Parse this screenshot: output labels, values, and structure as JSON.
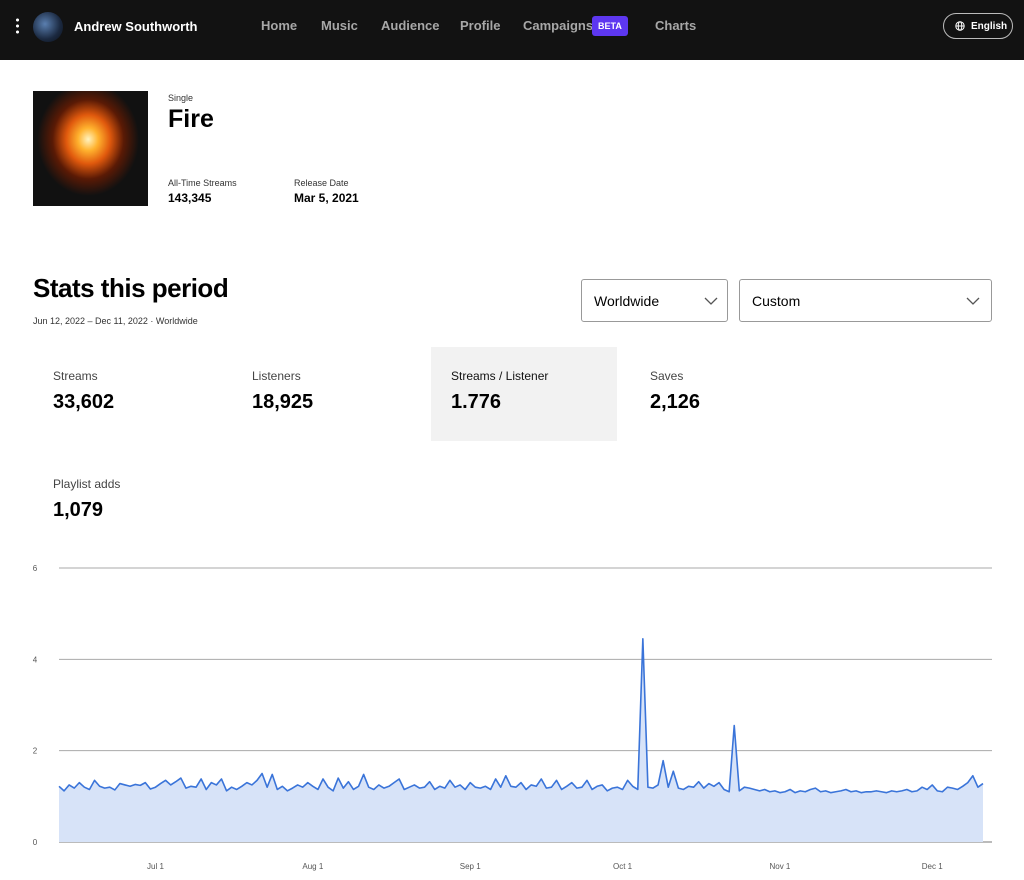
{
  "header": {
    "artist": "Andrew Southworth",
    "nav": [
      "Home",
      "Music",
      "Audience",
      "Profile",
      "Campaigns",
      "Charts"
    ],
    "badge": "BETA",
    "language": "English"
  },
  "release": {
    "kind": "Single",
    "title": "Fire",
    "stats": [
      {
        "label": "All-Time Streams",
        "value": "143,345"
      },
      {
        "label": "Release Date",
        "value": "Mar 5, 2021"
      }
    ]
  },
  "stats": {
    "title": "Stats this period",
    "subtitle": "Jun 12, 2022 – Dec 11, 2022 · Worldwide",
    "filters": [
      "Worldwide",
      "Custom"
    ],
    "metrics": [
      {
        "label": "Streams",
        "value": "33,602"
      },
      {
        "label": "Listeners",
        "value": "18,925"
      },
      {
        "label": "Streams / Listener",
        "value": "1.776"
      },
      {
        "label": "Saves",
        "value": "2,126"
      },
      {
        "label": "Playlist adds",
        "value": "1,079"
      }
    ]
  },
  "chart_data": {
    "type": "area",
    "color": "#3a74d9",
    "fill": "#d7e3f8",
    "grid": true,
    "ylim": [
      0,
      6
    ],
    "yticks": [
      0,
      2,
      4,
      6
    ],
    "categories": [
      null,
      null,
      null,
      null,
      null,
      null,
      null,
      null,
      null,
      null,
      null,
      null,
      null,
      null,
      null,
      null,
      null,
      null,
      null,
      "Jul 1",
      null,
      null,
      null,
      null,
      null,
      null,
      null,
      null,
      null,
      null,
      null,
      null,
      null,
      null,
      null,
      null,
      null,
      null,
      null,
      null,
      null,
      null,
      null,
      null,
      null,
      null,
      null,
      null,
      null,
      null,
      "Aug 1",
      null,
      null,
      null,
      null,
      null,
      null,
      null,
      null,
      null,
      null,
      null,
      null,
      null,
      null,
      null,
      null,
      null,
      null,
      null,
      null,
      null,
      null,
      null,
      null,
      null,
      null,
      null,
      null,
      null,
      null,
      "Sep 1",
      null,
      null,
      null,
      null,
      null,
      null,
      null,
      null,
      null,
      null,
      null,
      null,
      null,
      null,
      null,
      null,
      null,
      null,
      null,
      null,
      null,
      null,
      null,
      null,
      null,
      null,
      null,
      null,
      null,
      "Oct 1",
      null,
      null,
      null,
      null,
      null,
      null,
      null,
      null,
      null,
      null,
      null,
      null,
      null,
      null,
      null,
      null,
      null,
      null,
      null,
      null,
      null,
      null,
      null,
      null,
      null,
      null,
      null,
      null,
      null,
      null,
      "Nov 1",
      null,
      null,
      null,
      null,
      null,
      null,
      null,
      null,
      null,
      null,
      null,
      null,
      null,
      null,
      null,
      null,
      null,
      null,
      null,
      null,
      null,
      null,
      null,
      null,
      null,
      null,
      null,
      null,
      null,
      "Dec 1",
      null,
      null,
      null,
      null,
      null,
      null,
      null,
      null,
      null,
      null
    ],
    "values": [
      1.22,
      1.12,
      1.25,
      1.18,
      1.3,
      1.2,
      1.15,
      1.35,
      1.22,
      1.18,
      1.2,
      1.14,
      1.28,
      1.25,
      1.22,
      1.26,
      1.24,
      1.3,
      1.16,
      1.2,
      1.28,
      1.35,
      1.25,
      1.32,
      1.4,
      1.18,
      1.22,
      1.2,
      1.38,
      1.15,
      1.3,
      1.25,
      1.38,
      1.12,
      1.2,
      1.15,
      1.22,
      1.3,
      1.25,
      1.35,
      1.5,
      1.2,
      1.48,
      1.15,
      1.22,
      1.12,
      1.18,
      1.25,
      1.2,
      1.3,
      1.22,
      1.15,
      1.38,
      1.2,
      1.12,
      1.4,
      1.18,
      1.32,
      1.15,
      1.22,
      1.48,
      1.2,
      1.15,
      1.25,
      1.18,
      1.22,
      1.3,
      1.38,
      1.15,
      1.2,
      1.25,
      1.18,
      1.2,
      1.32,
      1.15,
      1.22,
      1.18,
      1.35,
      1.2,
      1.25,
      1.15,
      1.3,
      1.2,
      1.18,
      1.22,
      1.15,
      1.38,
      1.2,
      1.45,
      1.22,
      1.2,
      1.3,
      1.15,
      1.25,
      1.22,
      1.38,
      1.18,
      1.2,
      1.35,
      1.15,
      1.22,
      1.3,
      1.18,
      1.2,
      1.35,
      1.15,
      1.22,
      1.25,
      1.12,
      1.18,
      1.2,
      1.15,
      1.35,
      1.22,
      1.15,
      4.45,
      1.2,
      1.18,
      1.25,
      1.78,
      1.2,
      1.55,
      1.18,
      1.15,
      1.22,
      1.2,
      1.32,
      1.18,
      1.28,
      1.22,
      1.3,
      1.15,
      1.1,
      2.55,
      1.12,
      1.2,
      1.18,
      1.15,
      1.12,
      1.15,
      1.1,
      1.12,
      1.08,
      1.1,
      1.15,
      1.08,
      1.12,
      1.1,
      1.15,
      1.18,
      1.1,
      1.12,
      1.08,
      1.1,
      1.12,
      1.15,
      1.1,
      1.12,
      1.08,
      1.1,
      1.1,
      1.12,
      1.1,
      1.08,
      1.12,
      1.1,
      1.12,
      1.15,
      1.1,
      1.12,
      1.2,
      1.15,
      1.25,
      1.12,
      1.1,
      1.2,
      1.18,
      1.15,
      1.22,
      1.3,
      1.45,
      1.2,
      1.28
    ]
  }
}
